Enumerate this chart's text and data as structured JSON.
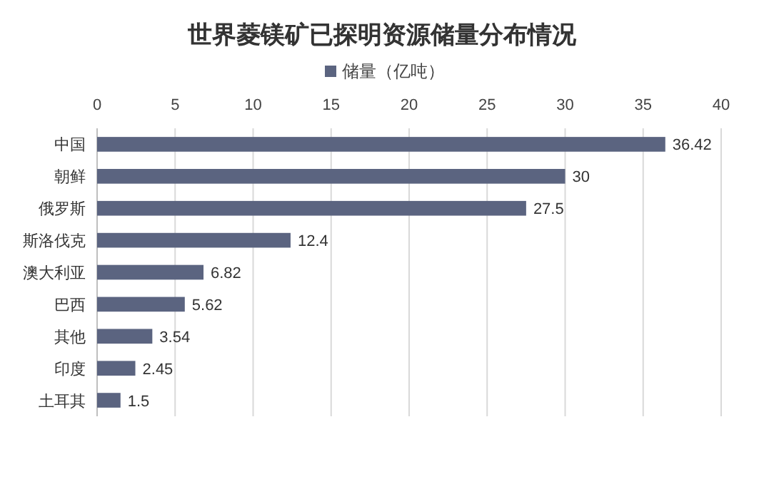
{
  "chart_data": {
    "type": "bar",
    "orientation": "horizontal",
    "title": "世界菱镁矿已探明资源储量分布情况",
    "categories": [
      "中国",
      "朝鲜",
      "俄罗斯",
      "斯洛伐克",
      "澳大利亚",
      "巴西",
      "其他",
      "印度",
      "土耳其"
    ],
    "series": [
      {
        "name": "储量（亿吨）",
        "color": "#5b6480",
        "values": [
          36.42,
          30,
          27.5,
          12.4,
          6.82,
          5.62,
          3.54,
          2.45,
          1.5
        ]
      }
    ],
    "xlim": [
      0,
      40
    ],
    "xticks": [
      0,
      5,
      10,
      15,
      20,
      25,
      30,
      35,
      40
    ],
    "grid": "x",
    "legend": "top",
    "data_labels": true
  }
}
